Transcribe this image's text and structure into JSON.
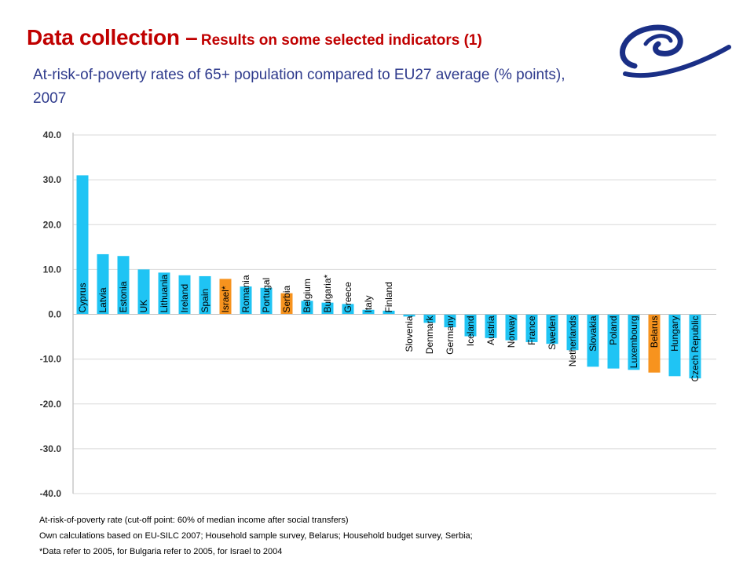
{
  "title_main": "Data collection –",
  "title_sub": "Results on some selected indicators (1)",
  "subtitle": "At-risk-of-poverty rates of 65+ population compared to EU27 average (% points), 2007",
  "logo_icon": "council-of-europe-swirl-icon",
  "colors": {
    "title": "#c00000",
    "subtitle": "#2e3a8c",
    "bar": "#1fc4f4",
    "highlight": "#f7931e",
    "grid": "#d9d9d9"
  },
  "chart_data": {
    "type": "bar",
    "title": "",
    "xlabel": "",
    "ylabel": "",
    "ylim": [
      -40,
      40
    ],
    "yticks": [
      "-40.0",
      "-30.0",
      "-20.0",
      "-10.0",
      "0.0",
      "10.0",
      "20.0",
      "30.0",
      "40.0"
    ],
    "ytick_values": [
      -40,
      -30,
      -20,
      -10,
      0,
      10,
      20,
      30,
      40
    ],
    "grid": true,
    "categories": [
      "Cyprus",
      "Latvia",
      "Estonia",
      "UK",
      "Lithuania",
      "Ireland",
      "Spain",
      "Israel*",
      "Romania",
      "Portugal",
      "Serbia",
      "Belgium",
      "Bulgaria*",
      "Greece",
      "Italy",
      "Finland",
      "Slovenia",
      "Denmark",
      "Germany",
      "Iceland",
      "Austria",
      "Norway",
      "France",
      "Sweden",
      "Netherlands",
      "Slovakia",
      "Poland",
      "Luxembourg",
      "Belarus",
      "Hungary",
      "Czech Republic"
    ],
    "values": [
      31.0,
      13.4,
      13.0,
      10.0,
      9.3,
      8.7,
      8.5,
      7.9,
      6.2,
      5.9,
      4.7,
      3.0,
      2.6,
      2.3,
      1.0,
      0.8,
      -0.5,
      -1.9,
      -2.9,
      -4.9,
      -5.3,
      -5.8,
      -6.2,
      -6.6,
      -8.0,
      -11.7,
      -12.1,
      -12.4,
      -13.0,
      -13.8,
      -14.3
    ],
    "highlight": [
      "Israel*",
      "Serbia",
      "Belarus"
    ]
  },
  "notes": [
    "At-risk-of-poverty rate (cut-off point: 60% of median income after social transfers)",
    "Own calculations based on EU-SILC 2007; Household sample survey, Belarus; Household budget survey, Serbia;",
    "*Data refer to 2005, for Bulgaria refer to 2005, for Israel to 2004"
  ]
}
